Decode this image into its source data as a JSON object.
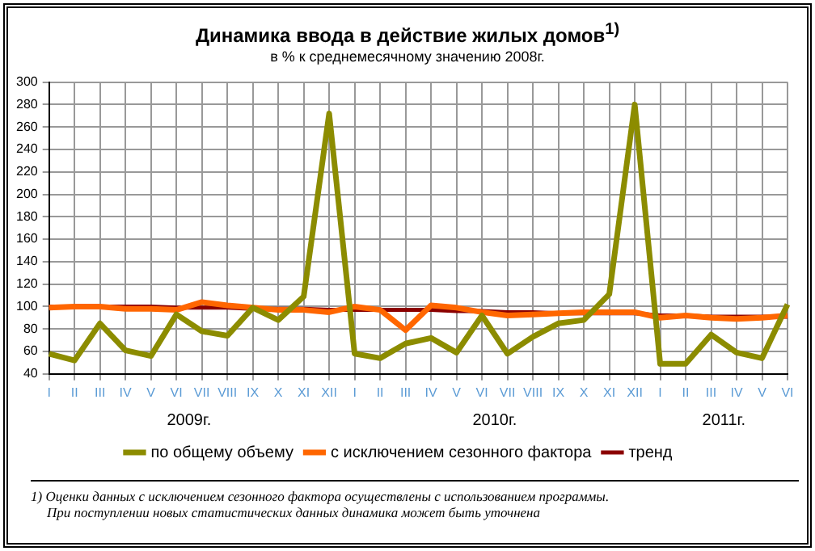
{
  "chart_data": {
    "type": "line",
    "title": "Динамика ввода в действие жилых домов$^{1)}$",
    "subtitle": "в % к среднемесячному значению 2008г.",
    "categories": [
      "I",
      "II",
      "III",
      "IV",
      "V",
      "VI",
      "VII",
      "VIII",
      "IX",
      "X",
      "XI",
      "XII",
      "I",
      "II",
      "III",
      "IV",
      "V",
      "VI",
      "VII",
      "VIII",
      "IX",
      "X",
      "XI",
      "XII",
      "I",
      "II",
      "III",
      "IV",
      "V",
      "VI"
    ],
    "series": [
      {
        "name": "по общему объему",
        "color": "#8c8c00",
        "values": [
          58,
          52,
          85,
          61,
          56,
          93,
          78,
          74,
          99,
          88,
          109,
          272,
          58,
          54,
          67,
          72,
          59,
          92,
          58,
          73,
          85,
          88,
          111,
          280,
          49,
          49,
          75,
          59,
          54,
          102
        ]
      },
      {
        "name": "с исключением сезонного фактора",
        "color": "#ff6600",
        "values": [
          99,
          100,
          100,
          98,
          98,
          97,
          104,
          101,
          99,
          97,
          97,
          95,
          100,
          97,
          79,
          101,
          99,
          95,
          92,
          93,
          94,
          95,
          95,
          95,
          90,
          92,
          90,
          89,
          90,
          92
        ]
      },
      {
        "name": "тренд",
        "color": "#8b0000",
        "values": [
          100,
          100,
          100,
          100,
          100,
          99,
          99,
          99,
          98,
          98,
          98,
          97,
          97,
          97,
          97,
          97,
          96,
          96,
          95,
          95,
          94,
          94,
          94,
          94,
          92,
          92,
          91,
          91,
          91,
          91
        ]
      }
    ],
    "ylim": [
      40,
      300
    ],
    "yticks": [
      40,
      60,
      80,
      100,
      120,
      140,
      160,
      180,
      200,
      220,
      240,
      260,
      280,
      300
    ],
    "grid": true,
    "legend": "bottom",
    "marker": "none",
    "line_style": "solid",
    "annotations": [
      "2009г.",
      "2010г.",
      "2011г.",
      "1) Оценки данных с исключением сезонного фактора осуществлены с использованием программы.",
      "При поступлении новых статистических данных динамика может быть уточнена"
    ]
  }
}
